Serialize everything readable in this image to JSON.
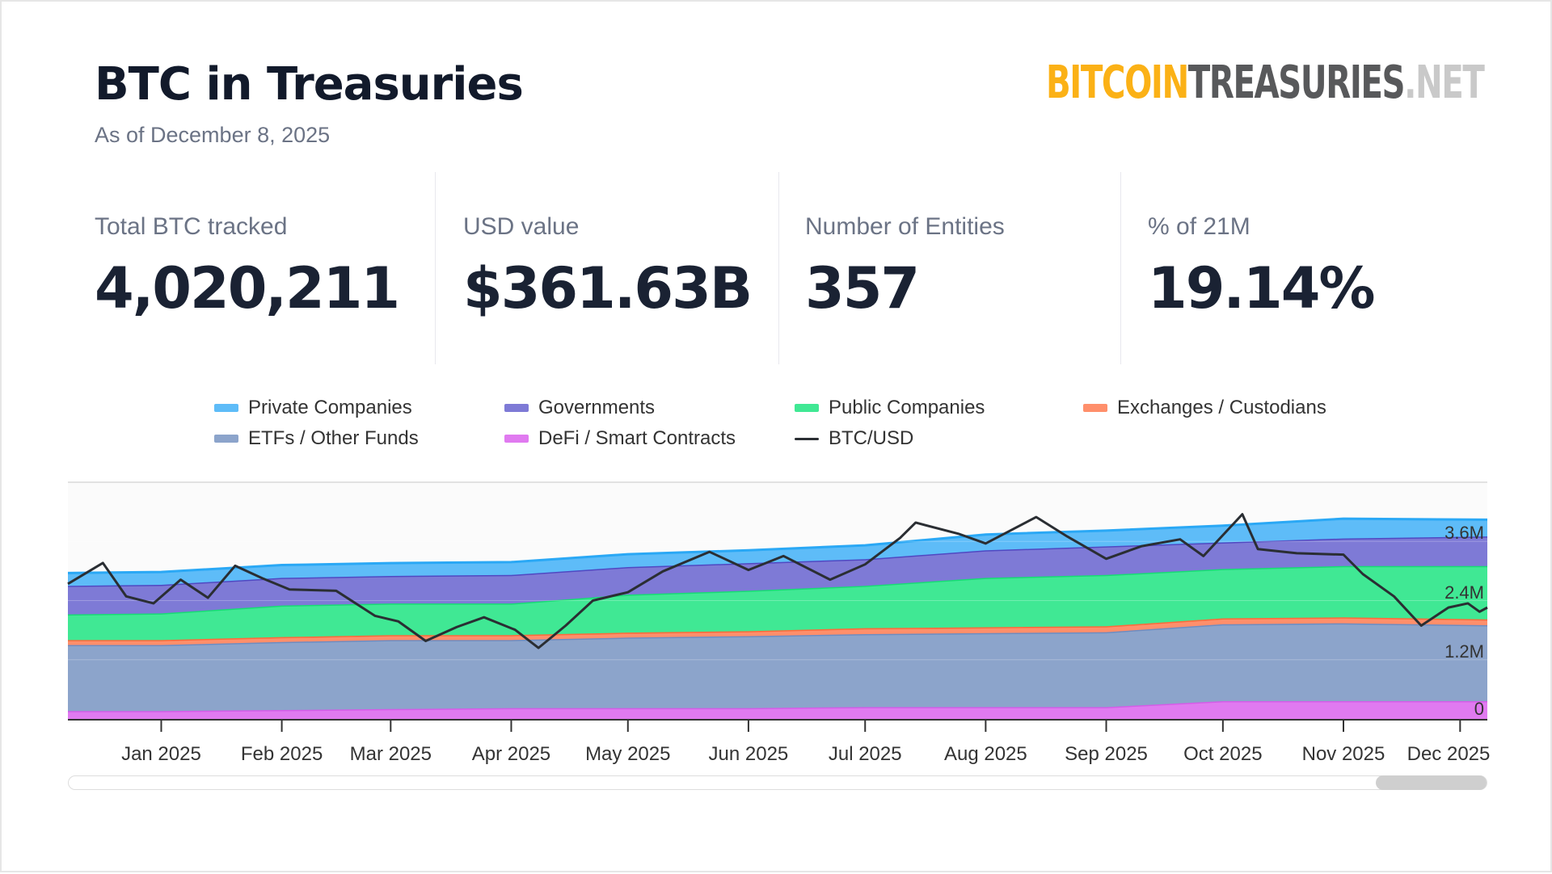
{
  "header": {
    "title": "BTC in Treasuries",
    "subtitle": "As of December 8, 2025",
    "logo": {
      "part1": "BITCOIN",
      "part2": "TREASURIES",
      "part3": ".NET"
    }
  },
  "stats": [
    {
      "label": "Total BTC tracked",
      "value": "4,020,211"
    },
    {
      "label": "USD value",
      "value": "$361.63B"
    },
    {
      "label": "Number of Entities",
      "value": "357"
    },
    {
      "label": "% of 21M",
      "value": "19.14%"
    }
  ],
  "chart_data": {
    "type": "area",
    "stacked": true,
    "dates": [
      "2024-12-08",
      "2025-01-01",
      "2025-02-01",
      "2025-03-01",
      "2025-04-01",
      "2025-05-01",
      "2025-06-01",
      "2025-07-01",
      "2025-08-01",
      "2025-09-01",
      "2025-10-01",
      "2025-11-01",
      "2025-12-08"
    ],
    "series": [
      {
        "name": "DeFi / Smart Contracts",
        "color": "#e07af0",
        "stroke": "#d45ce8",
        "values": [
          0.16,
          0.16,
          0.18,
          0.2,
          0.22,
          0.22,
          0.22,
          0.24,
          0.24,
          0.24,
          0.36,
          0.36,
          0.36
        ]
      },
      {
        "name": "ETFs / Other Funds",
        "color": "#8ca4cb",
        "stroke": "#6e8cc0",
        "values": [
          1.34,
          1.34,
          1.38,
          1.4,
          1.38,
          1.43,
          1.46,
          1.48,
          1.5,
          1.52,
          1.56,
          1.58,
          1.54
        ]
      },
      {
        "name": "Exchanges / Custodians",
        "color": "#ff8f6b",
        "stroke": "#ff6a3a",
        "values": [
          0.1,
          0.1,
          0.1,
          0.1,
          0.1,
          0.1,
          0.1,
          0.12,
          0.12,
          0.12,
          0.12,
          0.12,
          0.12
        ]
      },
      {
        "name": "Public Companies",
        "color": "#40e894",
        "stroke": "#17dc74",
        "values": [
          0.52,
          0.54,
          0.64,
          0.64,
          0.64,
          0.77,
          0.82,
          0.86,
          1.0,
          1.04,
          1.0,
          1.04,
          1.08
        ]
      },
      {
        "name": "Governments",
        "color": "#7e7ad6",
        "stroke": "#5048c2",
        "values": [
          0.58,
          0.58,
          0.56,
          0.56,
          0.58,
          0.56,
          0.56,
          0.54,
          0.56,
          0.58,
          0.54,
          0.56,
          0.6
        ]
      },
      {
        "name": "Private Companies",
        "color": "#5ebcf8",
        "stroke": "#2aa8f5",
        "values": [
          0.26,
          0.26,
          0.26,
          0.26,
          0.26,
          0.26,
          0.26,
          0.28,
          0.32,
          0.32,
          0.34,
          0.4,
          0.34
        ]
      }
    ],
    "btc_usd": {
      "name": "BTC/USD",
      "color": "#2a2e33",
      "range": [
        51000,
        136000
      ],
      "points": [
        [
          "2024-12-08",
          99500
        ],
        [
          "2024-12-17",
          107000
        ],
        [
          "2024-12-23",
          95000
        ],
        [
          "2024-12-30",
          92500
        ],
        [
          "2025-01-06",
          101000
        ],
        [
          "2025-01-13",
          94500
        ],
        [
          "2025-01-20",
          106000
        ],
        [
          "2025-01-27",
          101500
        ],
        [
          "2025-02-03",
          97500
        ],
        [
          "2025-02-15",
          97000
        ],
        [
          "2025-02-25",
          88000
        ],
        [
          "2025-03-03",
          86000
        ],
        [
          "2025-03-10",
          79000
        ],
        [
          "2025-03-18",
          84000
        ],
        [
          "2025-03-25",
          87500
        ],
        [
          "2025-04-02",
          83000
        ],
        [
          "2025-04-08",
          76500
        ],
        [
          "2025-04-15",
          84500
        ],
        [
          "2025-04-22",
          93500
        ],
        [
          "2025-05-01",
          96500
        ],
        [
          "2025-05-10",
          104000
        ],
        [
          "2025-05-22",
          111000
        ],
        [
          "2025-06-01",
          104500
        ],
        [
          "2025-06-10",
          109500
        ],
        [
          "2025-06-22",
          101000
        ],
        [
          "2025-07-01",
          106500
        ],
        [
          "2025-07-10",
          116000
        ],
        [
          "2025-07-14",
          121500
        ],
        [
          "2025-07-25",
          117500
        ],
        [
          "2025-08-01",
          114000
        ],
        [
          "2025-08-14",
          123500
        ],
        [
          "2025-08-22",
          116500
        ],
        [
          "2025-09-01",
          108500
        ],
        [
          "2025-09-10",
          113000
        ],
        [
          "2025-09-20",
          115500
        ],
        [
          "2025-09-26",
          109500
        ],
        [
          "2025-10-06",
          124500
        ],
        [
          "2025-10-10",
          112000
        ],
        [
          "2025-10-20",
          110500
        ],
        [
          "2025-11-01",
          110000
        ],
        [
          "2025-11-06",
          103000
        ],
        [
          "2025-11-14",
          95000
        ],
        [
          "2025-11-21",
          84500
        ],
        [
          "2025-11-28",
          91000
        ],
        [
          "2025-12-03",
          92500
        ],
        [
          "2025-12-06",
          89500
        ],
        [
          "2025-12-08",
          91000
        ]
      ]
    },
    "y_axis": {
      "ticks": [
        0,
        1.2,
        2.4,
        3.6
      ],
      "labels": [
        "0",
        "1.2M",
        "2.4M",
        "3.6M"
      ],
      "range": [
        0,
        4.8
      ],
      "unit": "M BTC"
    },
    "x_axis": {
      "range": [
        "2024-12-08",
        "2025-12-08"
      ],
      "ticks": [
        "2025-01-01",
        "2025-02-01",
        "2025-03-01",
        "2025-04-01",
        "2025-05-01",
        "2025-06-01",
        "2025-07-01",
        "2025-08-01",
        "2025-09-01",
        "2025-10-01",
        "2025-11-01",
        "2025-12-01"
      ],
      "labels": [
        "Jan 2025",
        "Feb 2025",
        "Mar 2025",
        "Apr 2025",
        "May 2025",
        "Jun 2025",
        "Jul 2025",
        "Aug 2025",
        "Sep 2025",
        "Oct 2025",
        "Nov 2025",
        "Dec 2025"
      ]
    },
    "legend": {
      "placement": "top",
      "items": [
        "Private Companies",
        "Governments",
        "Public Companies",
        "Exchanges / Custodians",
        "ETFs / Other Funds",
        "DeFi / Smart Contracts",
        "BTC/USD"
      ]
    },
    "grid": true
  }
}
